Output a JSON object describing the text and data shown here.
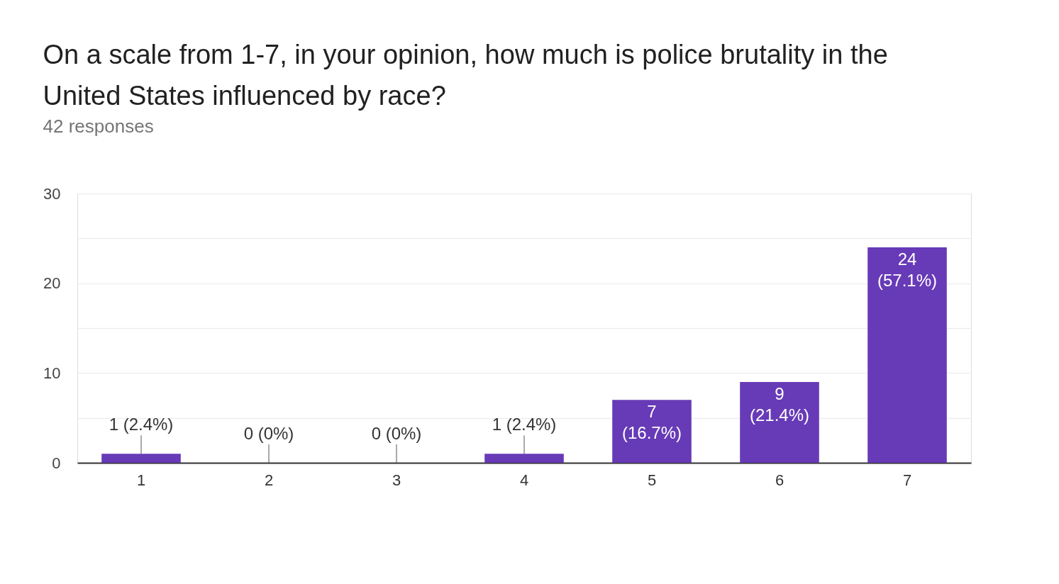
{
  "chart_data": {
    "type": "bar",
    "title": "On a scale from 1-7, in your opinion, how much  is police brutality in the United States influenced by race?",
    "subtitle": "42 responses",
    "categories": [
      "1",
      "2",
      "3",
      "4",
      "5",
      "6",
      "7"
    ],
    "values": [
      1,
      0,
      0,
      1,
      7,
      9,
      24
    ],
    "value_labels": [
      "1 (2.4%)",
      "0 (0%)",
      "0 (0%)",
      "1 (2.4%)",
      "7 (16.7%)",
      "9 (21.4%)",
      "24 (57.1%)"
    ],
    "color": "#673ab7",
    "ylim": [
      0,
      30
    ],
    "yticks": [
      0,
      {
        "value": 5,
        "label": null
      },
      10,
      {
        "value": 15,
        "label": null
      },
      20,
      {
        "value": 25,
        "label": null
      },
      30
    ],
    "grid": true
  }
}
